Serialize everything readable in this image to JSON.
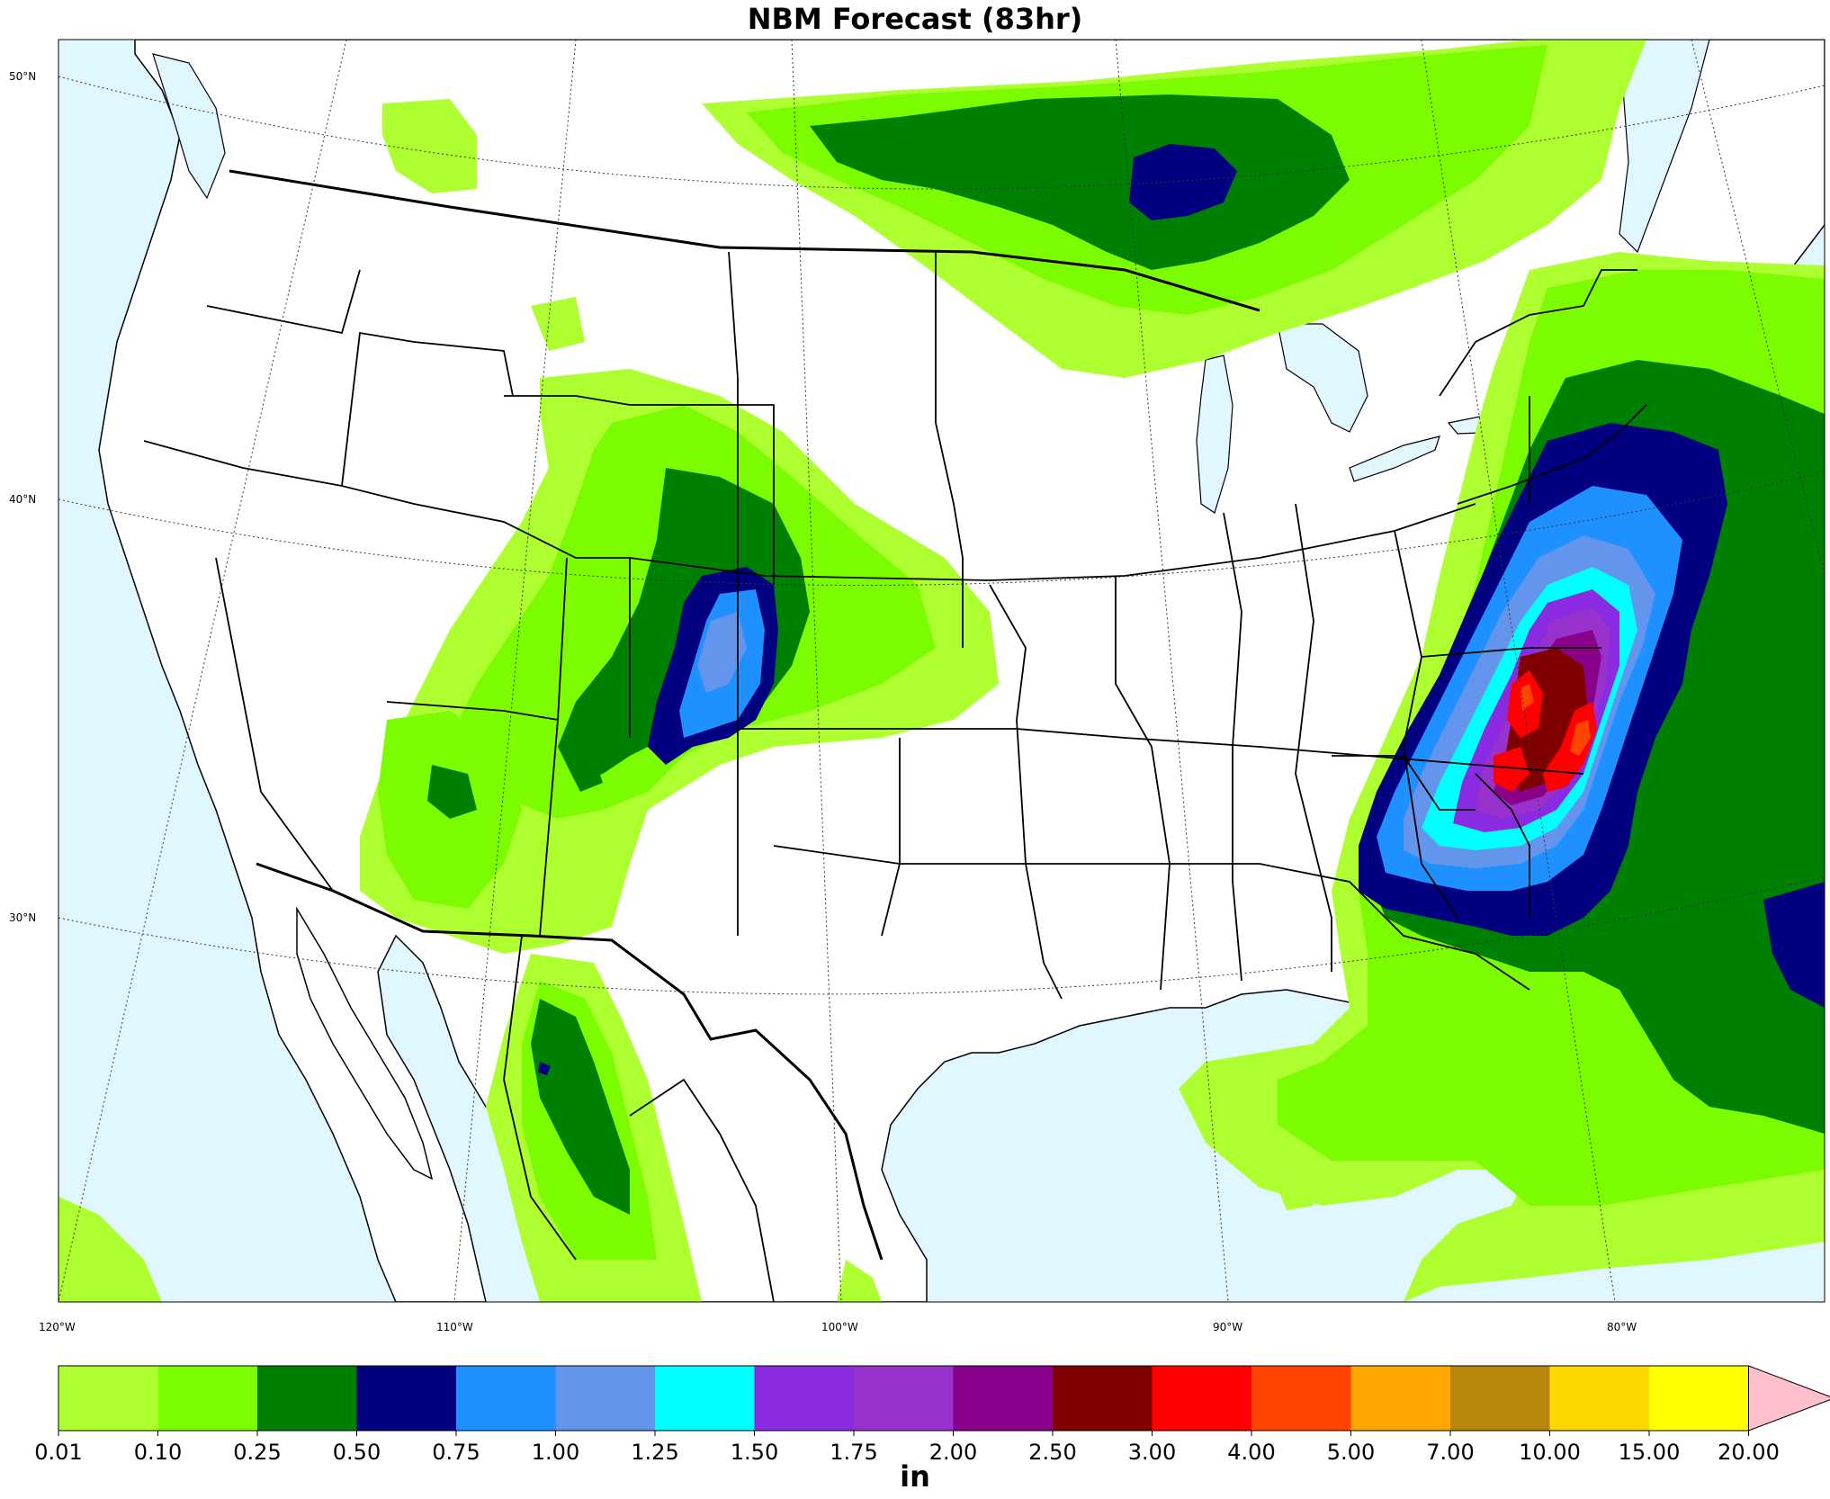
{
  "title": "NBM Forecast (83hr)",
  "units": "in",
  "lat_labels": [
    "50°N",
    "40°N",
    "30°N"
  ],
  "lon_labels": [
    "120°W",
    "110°W",
    "100°W",
    "90°W",
    "80°W"
  ],
  "colorbar": {
    "ticks": [
      "0.01",
      "0.10",
      "0.25",
      "0.50",
      "0.75",
      "1.00",
      "1.25",
      "1.50",
      "1.75",
      "2.00",
      "2.50",
      "3.00",
      "4.00",
      "5.00",
      "7.00",
      "10.00",
      "15.00",
      "20.00"
    ],
    "colors": [
      "#adff2f",
      "#7cfc00",
      "#008000",
      "#000080",
      "#1e90ff",
      "#6495ed",
      "#00ffff",
      "#8a2be2",
      "#9932cc",
      "#8b008b",
      "#800000",
      "#ff0000",
      "#ff4500",
      "#ffa500",
      "#b8860b",
      "#ffd700",
      "#ffff00"
    ],
    "extend_color": "#ffc0cb"
  },
  "colors": {
    "ocean": "#e0f7ff",
    "land": "#ffffff"
  }
}
